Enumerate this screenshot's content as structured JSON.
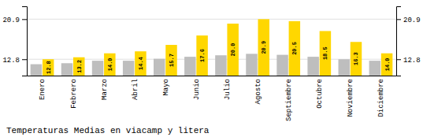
{
  "chart_data": {
    "type": "bar",
    "title": "Temperaturas Medias en viacamp y litera",
    "categories": [
      "Enero",
      "Febrero",
      "Marzo",
      "Abril",
      "Mayo",
      "Junio",
      "Julio",
      "Agosto",
      "Septiembre",
      "Octubre",
      "Noviembre",
      "Diciembre"
    ],
    "series": [
      {
        "color": "#BEBEBE",
        "values": [
          11.8,
          12.0,
          12.5,
          12.5,
          12.9,
          13.3,
          13.6,
          13.9,
          13.7,
          13.3,
          12.8,
          12.5
        ]
      },
      {
        "color": "#FFD700",
        "values": [
          12.8,
          13.2,
          14.0,
          14.4,
          15.7,
          17.6,
          20.0,
          20.9,
          20.5,
          18.5,
          16.3,
          14.0
        ],
        "value_labels": [
          "12.8",
          "13.2",
          "14.0",
          "14.4",
          "15.7",
          "17.6",
          "20.0",
          "20.9",
          "20.5",
          "18.5",
          "16.3",
          "14.0"
        ],
        "data_labels": true
      }
    ],
    "ylim": [
      9.5,
      23.5
    ],
    "yticks": [
      12.8,
      20.9
    ],
    "y2lim": [
      9.5,
      23.5
    ],
    "y2ticks": [
      12.8,
      20.9
    ],
    "grid": true
  }
}
